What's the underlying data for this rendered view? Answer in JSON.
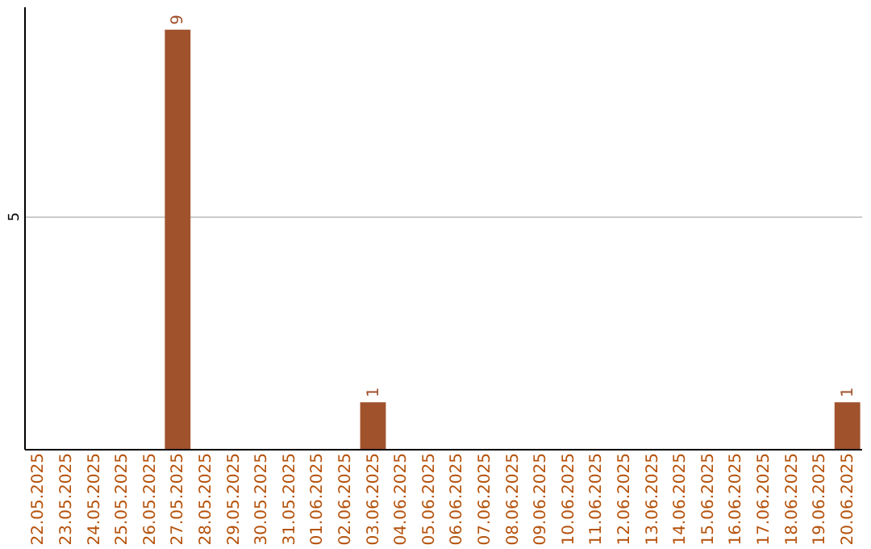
{
  "chart_data": {
    "type": "bar",
    "categories": [
      "22.05.2025",
      "23.05.2025",
      "24.05.2025",
      "25.05.2025",
      "26.05.2025",
      "27.05.2025",
      "28.05.2025",
      "29.05.2025",
      "30.05.2025",
      "31.05.2025",
      "01.06.2025",
      "02.06.2025",
      "03.06.2025",
      "04.06.2025",
      "05.06.2025",
      "06.06.2025",
      "07.06.2025",
      "08.06.2025",
      "09.06.2025",
      "10.06.2025",
      "11.06.2025",
      "12.06.2025",
      "13.06.2025",
      "14.06.2025",
      "15.06.2025",
      "16.06.2025",
      "17.06.2025",
      "18.06.2025",
      "19.06.2025",
      "20.06.2025"
    ],
    "values": [
      0,
      0,
      0,
      0,
      0,
      9,
      0,
      0,
      0,
      0,
      0,
      0,
      1,
      0,
      0,
      0,
      0,
      0,
      0,
      0,
      0,
      0,
      0,
      0,
      0,
      0,
      0,
      0,
      0,
      1
    ],
    "value_labels": [
      null,
      null,
      null,
      null,
      null,
      "9",
      null,
      null,
      null,
      null,
      null,
      null,
      "1",
      null,
      null,
      null,
      null,
      null,
      null,
      null,
      null,
      null,
      null,
      null,
      null,
      null,
      null,
      null,
      null,
      "1"
    ],
    "color": "#a0522d",
    "ylim": [
      0,
      9.5
    ],
    "yticks": [
      5
    ],
    "grid": "y"
  }
}
